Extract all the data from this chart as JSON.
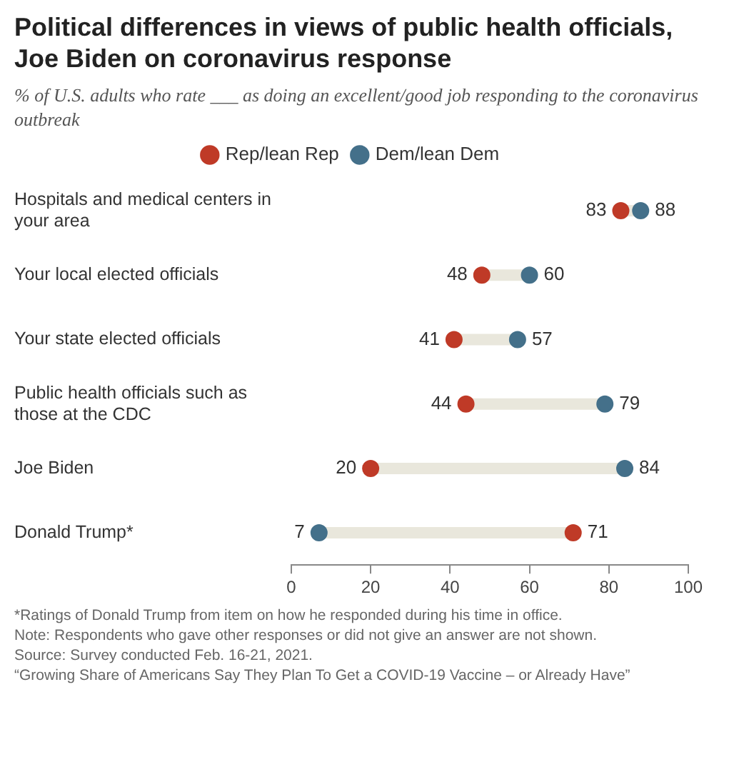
{
  "chart_data": {
    "type": "scatter",
    "orientation": "horizontal",
    "title": "Political differences in views of public health officials, Joe Biden on coronavirus response",
    "subtitle": "% of U.S. adults who rate ___ as doing an excellent/good job responding to the coronavirus outbreak",
    "categories": [
      "Hospitals and medical centers in your area",
      "Your local elected officials",
      "Your state elected officials",
      "Public health officials such as those at the CDC",
      "Joe Biden",
      "Donald Trump*"
    ],
    "series": [
      {
        "name": "Rep/lean Rep",
        "color": "#bf3a27",
        "values": [
          83,
          48,
          41,
          44,
          20,
          71
        ]
      },
      {
        "name": "Dem/lean Dem",
        "color": "#44708a",
        "values": [
          88,
          60,
          57,
          79,
          84,
          7
        ]
      }
    ],
    "xlim": [
      0,
      100
    ],
    "xticks": [
      0,
      20,
      40,
      60,
      80,
      100
    ],
    "grid": false,
    "legend": "top",
    "data_labels": true,
    "marker": "circle",
    "annotations": [
      "*Ratings of Donald Trump from item on how he responded during his time in office.",
      "Note: Respondents who gave other responses or did not give an answer are not shown.",
      "Source: Survey conducted Feb. 16-21, 2021.",
      "“Growing Share of Americans Say They Plan To Get a COVID-19 Vaccine – or Already Have”"
    ]
  }
}
